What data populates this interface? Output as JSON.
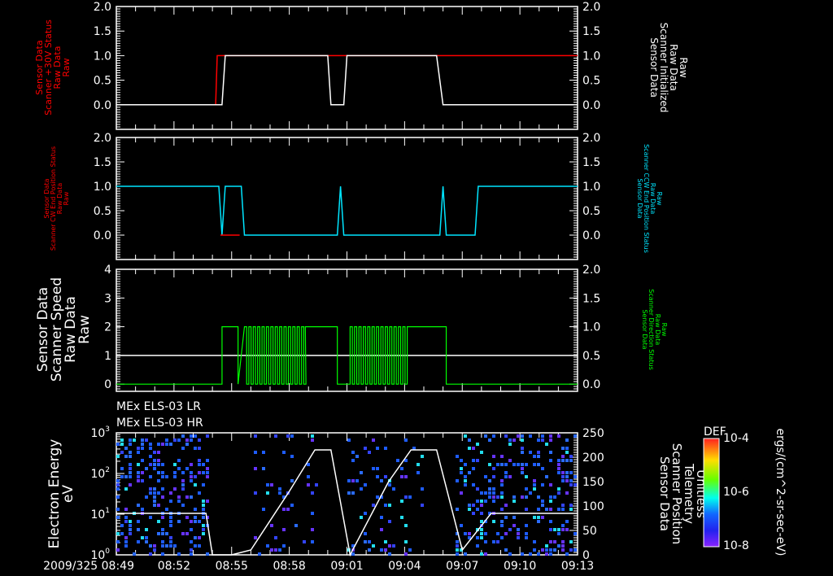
{
  "chart_data": [
    {
      "type": "line",
      "panel": 1,
      "ylabel_left": [
        "Sensor Data",
        "Scanner +30V Status",
        "Raw Data",
        "Raw"
      ],
      "ylabel_left_color": "#ff0000",
      "ylabel_right": [
        "Sensor Data",
        "Scanner Initialized",
        "Raw Data",
        "Raw"
      ],
      "ylabel_right_color": "#ffffff",
      "yticks_left": [
        "2.0",
        "1.5",
        "1.0",
        "0.5",
        "0.0"
      ],
      "yticks_right": [
        "2.0",
        "1.5",
        "1.0",
        "0.5",
        "0.0"
      ],
      "ylim": [
        -0.5,
        2.0
      ],
      "series": [
        {
          "name": "Scanner +30V Status",
          "color": "#ff0000",
          "x": [
            "08:49",
            "08:54:10",
            "08:54:30",
            "09:00:10",
            "09:00:50",
            "09:05:40",
            "09:06:00",
            "09:13"
          ],
          "values": [
            0,
            0,
            1,
            1,
            1,
            1,
            1,
            1
          ]
        },
        {
          "name": "Scanner Initialized",
          "color": "#ffffff",
          "x": [
            "08:49",
            "08:54:30",
            "08:54:40",
            "09:00",
            "09:00:10",
            "09:00:50",
            "09:01",
            "09:05:40",
            "09:06",
            "09:07:20",
            "09:07:30",
            "09:13"
          ],
          "values": [
            0,
            0,
            1,
            1,
            0,
            0,
            1,
            1,
            0,
            0,
            0,
            0
          ]
        }
      ]
    },
    {
      "type": "line",
      "panel": 2,
      "ylabel_left": [
        "Sensor Data",
        "Scanner CW End Position Status",
        "Raw Data",
        "Raw"
      ],
      "ylabel_left_color": "#ff0000",
      "ylabel_right": [
        "Sensor Data",
        "Scanner CCW End Position Status",
        "Raw Data",
        "Raw"
      ],
      "ylabel_right_color": "#00e5ff",
      "yticks_left": [
        "2.0",
        "1.5",
        "1.0",
        "0.5",
        "0.0"
      ],
      "yticks_right": [
        "2.0",
        "1.5",
        "1.0",
        "0.5",
        "0.0"
      ],
      "ylim": [
        -0.5,
        2.0
      ],
      "series": [
        {
          "name": "Scanner CW End Position Status",
          "color": "#ff0000",
          "values": [
            0,
            0,
            0,
            0
          ]
        },
        {
          "name": "Scanner CCW End Position Status",
          "color": "#00e5ff",
          "x": [
            "08:49",
            "08:54:20",
            "08:54:30",
            "08:55:30",
            "09:00:30",
            "09:00:40",
            "09:05:50",
            "09:06",
            "09:07:40",
            "09:07:50",
            "09:13"
          ],
          "values": [
            1,
            1,
            0,
            1,
            0,
            1,
            0,
            1,
            0,
            1,
            1
          ]
        }
      ]
    },
    {
      "type": "line",
      "panel": 3,
      "ylabel_left": [
        "Sensor Data",
        "Scanner Speed",
        "Raw Data",
        "Raw"
      ],
      "ylabel_left_color": "#ffffff",
      "ylabel_right": [
        "Sensor Data",
        "Scanner Direction Status",
        "Raw Data",
        "Raw"
      ],
      "ylabel_right_color": "#00ff00",
      "yticks_left": [
        "4",
        "3",
        "2",
        "1",
        "0"
      ],
      "yticks_right": [
        "2.0",
        "1.5",
        "1.0",
        "0.5",
        "0.0"
      ],
      "ylim_left": [
        -1,
        4
      ],
      "ylim_right": [
        -0.5,
        2.0
      ],
      "series": [
        {
          "name": "Scanner Speed",
          "color": "#ffffff",
          "values": [
            1,
            1
          ]
        },
        {
          "name": "Scanner Direction Status",
          "color": "#00ff00",
          "note": "toggles 0/2 rapidly during scans 08:55:30–08:58:50 and 09:01–09:04:10; high 08:54:30–08:55:20, 08:58:50–09:00:30, 09:04:10–09:06:10"
        }
      ]
    },
    {
      "type": "heatmap",
      "panel": 4,
      "titles": [
        "MEx ELS-03 LR",
        "MEx ELS-03 HR"
      ],
      "ylabel_left": [
        "Electron Energy",
        "eV"
      ],
      "yticks_left": [
        "10^3",
        "10^2",
        "10^1",
        "10^0"
      ],
      "ylabel_right": [
        "Sensor Data",
        "Scanner Position",
        "Telemetry",
        "Unitless"
      ],
      "yticks_right": [
        "250",
        "200",
        "150",
        "100",
        "50",
        "0"
      ],
      "colorbar": {
        "label": "DEF",
        "ticks": [
          "10^-4",
          "10^-6",
          "10^-8"
        ],
        "units": "ergs/(cm^2-sr-sec-eV)"
      },
      "overlay_series": {
        "name": "Scanner Position",
        "color": "#ffffff",
        "x": [
          "08:49",
          "08:53:40",
          "08:54",
          "08:55",
          "08:56",
          "08:58",
          "08:59:20",
          "09:00:10",
          "09:01:10",
          "09:03:10",
          "09:04:20",
          "09:05:40",
          "09:07",
          "09:08:30",
          "09:13"
        ],
        "values": [
          85,
          85,
          0,
          0,
          10,
          130,
          215,
          215,
          0,
          150,
          215,
          215,
          10,
          85,
          85
        ]
      }
    }
  ],
  "xaxis": {
    "ticks": [
      "08:49",
      "08:52",
      "08:55",
      "08:58",
      "09:01",
      "09:04",
      "09:07",
      "09:10",
      "09:13"
    ],
    "date_prefix": "2009/325"
  }
}
